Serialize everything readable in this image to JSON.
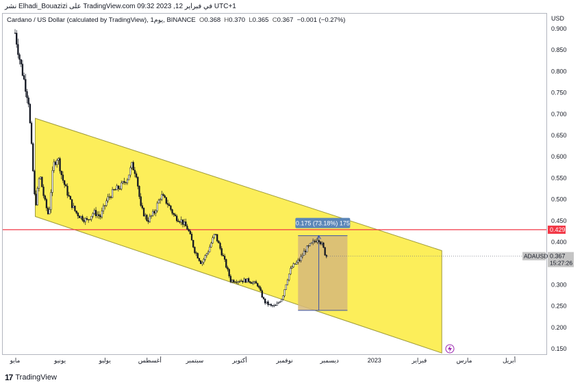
{
  "header": {
    "published": "نشر Elhadi_Bouazizi على TradingView.com في فبراير 12, 2023 09:32 UTC+1"
  },
  "legend": {
    "name": "Cardano / US Dollar (calculated by TradingView), 1يوم, BINANCE",
    "o_label": "O",
    "o": "0.368",
    "h_label": "H",
    "h": "0.370",
    "l_label": "L",
    "l": "0.365",
    "c_label": "C",
    "c": "0.367",
    "change": "−0.001 (−0.27%)"
  },
  "footer": {
    "logo": "17",
    "brand": "TradingView"
  },
  "chart_data": {
    "type": "candlestick",
    "symbol": "ADAUSD",
    "currency": "USD",
    "ylim": [
      0.14,
      0.91
    ],
    "y_ticks": [
      "0.900",
      "0.850",
      "0.800",
      "0.750",
      "0.700",
      "0.650",
      "0.600",
      "0.550",
      "0.500",
      "0.450",
      "0.400",
      "0.350",
      "0.300",
      "0.250",
      "0.200",
      "0.150"
    ],
    "x_ticks": [
      {
        "label": "مايو",
        "month": 0
      },
      {
        "label": "يونيو",
        "month": 1
      },
      {
        "label": "يوليو",
        "month": 2
      },
      {
        "label": "أغسطس",
        "month": 3
      },
      {
        "label": "سبتمبر",
        "month": 4
      },
      {
        "label": "أكتوبر",
        "month": 5
      },
      {
        "label": "نوفمبر",
        "month": 6
      },
      {
        "label": "ديسمبر",
        "month": 7
      },
      {
        "label": "2023",
        "month": 8
      },
      {
        "label": "فبراير",
        "month": 9
      },
      {
        "label": "مارس",
        "month": 10
      },
      {
        "label": "أبريل",
        "month": 11
      }
    ],
    "price_path": [
      [
        0,
        0.89
      ],
      [
        0.1,
        0.83
      ],
      [
        0.2,
        0.78
      ],
      [
        0.3,
        0.73
      ],
      [
        0.38,
        0.6
      ],
      [
        0.45,
        0.48
      ],
      [
        0.55,
        0.56
      ],
      [
        0.65,
        0.5
      ],
      [
        0.75,
        0.46
      ],
      [
        0.85,
        0.58
      ],
      [
        0.95,
        0.6
      ],
      [
        1.05,
        0.55
      ],
      [
        1.15,
        0.52
      ],
      [
        1.25,
        0.49
      ],
      [
        1.35,
        0.47
      ],
      [
        1.45,
        0.46
      ],
      [
        1.6,
        0.45
      ],
      [
        1.75,
        0.47
      ],
      [
        1.9,
        0.46
      ],
      [
        2.05,
        0.5
      ],
      [
        2.2,
        0.52
      ],
      [
        2.35,
        0.53
      ],
      [
        2.5,
        0.55
      ],
      [
        2.6,
        0.58
      ],
      [
        2.7,
        0.56
      ],
      [
        2.8,
        0.48
      ],
      [
        2.95,
        0.45
      ],
      [
        3.1,
        0.47
      ],
      [
        3.25,
        0.51
      ],
      [
        3.4,
        0.49
      ],
      [
        3.55,
        0.46
      ],
      [
        3.7,
        0.45
      ],
      [
        3.85,
        0.43
      ],
      [
        4.0,
        0.38
      ],
      [
        4.15,
        0.35
      ],
      [
        4.3,
        0.38
      ],
      [
        4.45,
        0.42
      ],
      [
        4.55,
        0.39
      ],
      [
        4.65,
        0.36
      ],
      [
        4.8,
        0.31
      ],
      [
        5.0,
        0.31
      ],
      [
        5.2,
        0.31
      ],
      [
        5.4,
        0.3
      ],
      [
        5.55,
        0.26
      ],
      [
        5.7,
        0.25
      ],
      [
        5.8,
        0.25
      ],
      [
        5.95,
        0.27
      ],
      [
        6.05,
        0.31
      ],
      [
        6.15,
        0.34
      ],
      [
        6.25,
        0.35
      ],
      [
        6.35,
        0.36
      ],
      [
        6.45,
        0.38
      ],
      [
        6.55,
        0.39
      ],
      [
        6.65,
        0.4
      ],
      [
        6.75,
        0.41
      ],
      [
        6.85,
        0.39
      ],
      [
        6.92,
        0.367
      ]
    ],
    "channel": {
      "upper": [
        [
          0.45,
          0.69
        ],
        [
          9.5,
          0.38
        ]
      ],
      "lower": [
        [
          0.45,
          0.46
        ],
        [
          9.5,
          0.14
        ]
      ]
    },
    "horizontal_line": {
      "value": 0.429,
      "label": "0.429",
      "color": "#f23645"
    },
    "measure": {
      "label": "0.175 (73.18%) 175",
      "from": 0.24,
      "to": 0.415,
      "x_start": 6.3,
      "x_end": 7.4
    },
    "last_price": {
      "symbol": "ADAUSD",
      "value": "0.367",
      "countdown": "15:27:26"
    },
    "colors": {
      "channel_fill": "#fcee5a",
      "measure_fill": "#d6b97a",
      "measure_label_bg": "#5b86b8",
      "candle": "#131722"
    }
  }
}
